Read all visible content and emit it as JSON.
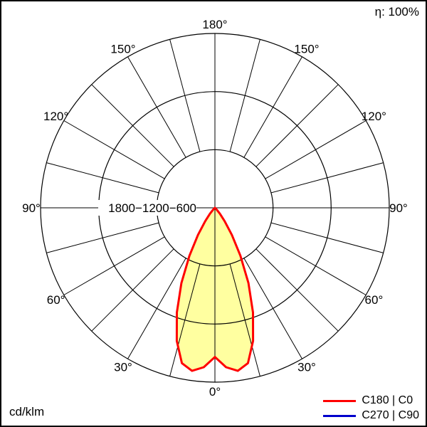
{
  "chart_data": {
    "type": "polar-intensity",
    "unit": "cd/klm",
    "efficiency": "η: 100%",
    "max_value": 1800,
    "radial_ticks": [
      600,
      1200,
      1800
    ],
    "radial_axis_label": "1800−1200−600",
    "angle_step_deg": 15,
    "angle_labels": [
      {
        "angle": 0,
        "label": "0°"
      },
      {
        "angle": 30,
        "label": "30°"
      },
      {
        "angle": 60,
        "label": "60°"
      },
      {
        "angle": 90,
        "label": "90°"
      },
      {
        "angle": 120,
        "label": "120°"
      },
      {
        "angle": 150,
        "label": "150°"
      },
      {
        "angle": 180,
        "label": "180°"
      }
    ],
    "series": [
      {
        "name": "C180 | C0",
        "color": "#ff0000",
        "fill": "#ffffa0",
        "symmetric": true,
        "gamma_deg": [
          0,
          4,
          8,
          12,
          16,
          20,
          24,
          28,
          32,
          36,
          40,
          45,
          50
        ],
        "values_cd_klm": [
          1540,
          1650,
          1700,
          1640,
          1430,
          1150,
          850,
          560,
          330,
          170,
          80,
          25,
          0
        ]
      }
    ],
    "legend": [
      {
        "label": "C180 | C0",
        "color": "#ff0000"
      },
      {
        "label": "C270 | C90",
        "color": "#0000cc"
      }
    ]
  }
}
